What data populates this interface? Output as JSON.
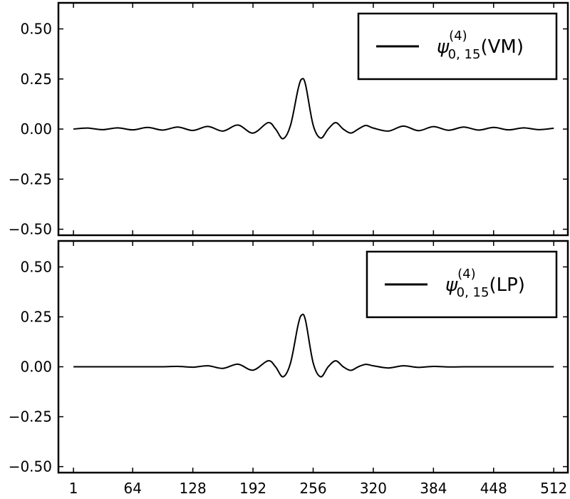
{
  "chart_data": [
    {
      "type": "line",
      "title": "",
      "xlabel": "",
      "ylabel": "",
      "xlim": [
        -15,
        527
      ],
      "ylim": [
        -0.53,
        0.63
      ],
      "xticks": [
        1,
        64,
        128,
        192,
        256,
        320,
        384,
        448,
        512
      ],
      "xtick_labels": [],
      "yticks": [
        0.5,
        0.25,
        0.0,
        -0.25,
        -0.5
      ],
      "ytick_labels": [
        "0.50",
        "0.25",
        "0.00",
        "−0.25",
        "−0.50"
      ],
      "grid": false,
      "legend_position": "top-right",
      "legend": {
        "symbol": "ψ",
        "superscript": "(4)",
        "subscript": "0, 15",
        "suffix": "(VM)"
      },
      "series": [
        {
          "name": "ψ(4)0,15(VM)",
          "color": "#000000",
          "x": [
            1,
            16,
            32,
            48,
            64,
            80,
            96,
            112,
            128,
            144,
            160,
            176,
            192,
            208,
            216,
            224,
            232,
            240,
            244,
            248,
            256,
            264,
            272,
            280,
            288,
            296,
            304,
            312,
            320,
            336,
            352,
            368,
            384,
            400,
            416,
            432,
            448,
            464,
            480,
            496,
            512
          ],
          "values": [
            0.0,
            0.005,
            -0.003,
            0.006,
            -0.004,
            0.008,
            -0.005,
            0.01,
            -0.007,
            0.013,
            -0.01,
            0.02,
            -0.02,
            0.032,
            0.0,
            -0.048,
            0.02,
            0.2,
            0.25,
            0.22,
            0.02,
            -0.045,
            0.0,
            0.032,
            0.0,
            -0.02,
            0.0,
            0.018,
            0.005,
            -0.01,
            0.015,
            -0.008,
            0.012,
            -0.006,
            0.01,
            -0.005,
            0.008,
            -0.004,
            0.006,
            -0.003,
            0.004
          ]
        }
      ]
    },
    {
      "type": "line",
      "title": "",
      "xlabel": "",
      "ylabel": "",
      "xlim": [
        -15,
        527
      ],
      "ylim": [
        -0.53,
        0.63
      ],
      "xticks": [
        1,
        64,
        128,
        192,
        256,
        320,
        384,
        448,
        512
      ],
      "xtick_labels": [
        "1",
        "64",
        "128",
        "192",
        "256",
        "320",
        "384",
        "448",
        "512"
      ],
      "yticks": [
        0.5,
        0.25,
        0.0,
        -0.25,
        -0.5
      ],
      "ytick_labels": [
        "0.50",
        "0.25",
        "0.00",
        "−0.25",
        "−0.50"
      ],
      "grid": false,
      "legend_position": "top-right",
      "legend": {
        "symbol": "ψ",
        "superscript": "(4)",
        "subscript": "0, 15",
        "suffix": "(LP)"
      },
      "series": [
        {
          "name": "ψ(4)0,15(LP)",
          "color": "#000000",
          "x": [
            1,
            32,
            64,
            96,
            112,
            128,
            144,
            160,
            176,
            192,
            208,
            216,
            224,
            232,
            240,
            244,
            248,
            256,
            264,
            272,
            280,
            288,
            296,
            304,
            312,
            320,
            336,
            352,
            368,
            384,
            400,
            416,
            448,
            480,
            512
          ],
          "values": [
            0.0,
            0.0,
            0.0,
            0.0,
            0.002,
            -0.002,
            0.005,
            -0.008,
            0.013,
            -0.017,
            0.03,
            0.0,
            -0.05,
            0.02,
            0.21,
            0.26,
            0.23,
            0.02,
            -0.05,
            0.0,
            0.03,
            0.0,
            -0.018,
            0.0,
            0.012,
            0.005,
            -0.006,
            0.005,
            -0.003,
            0.002,
            -0.001,
            0.0,
            0.0,
            0.0,
            0.0
          ]
        }
      ]
    }
  ]
}
